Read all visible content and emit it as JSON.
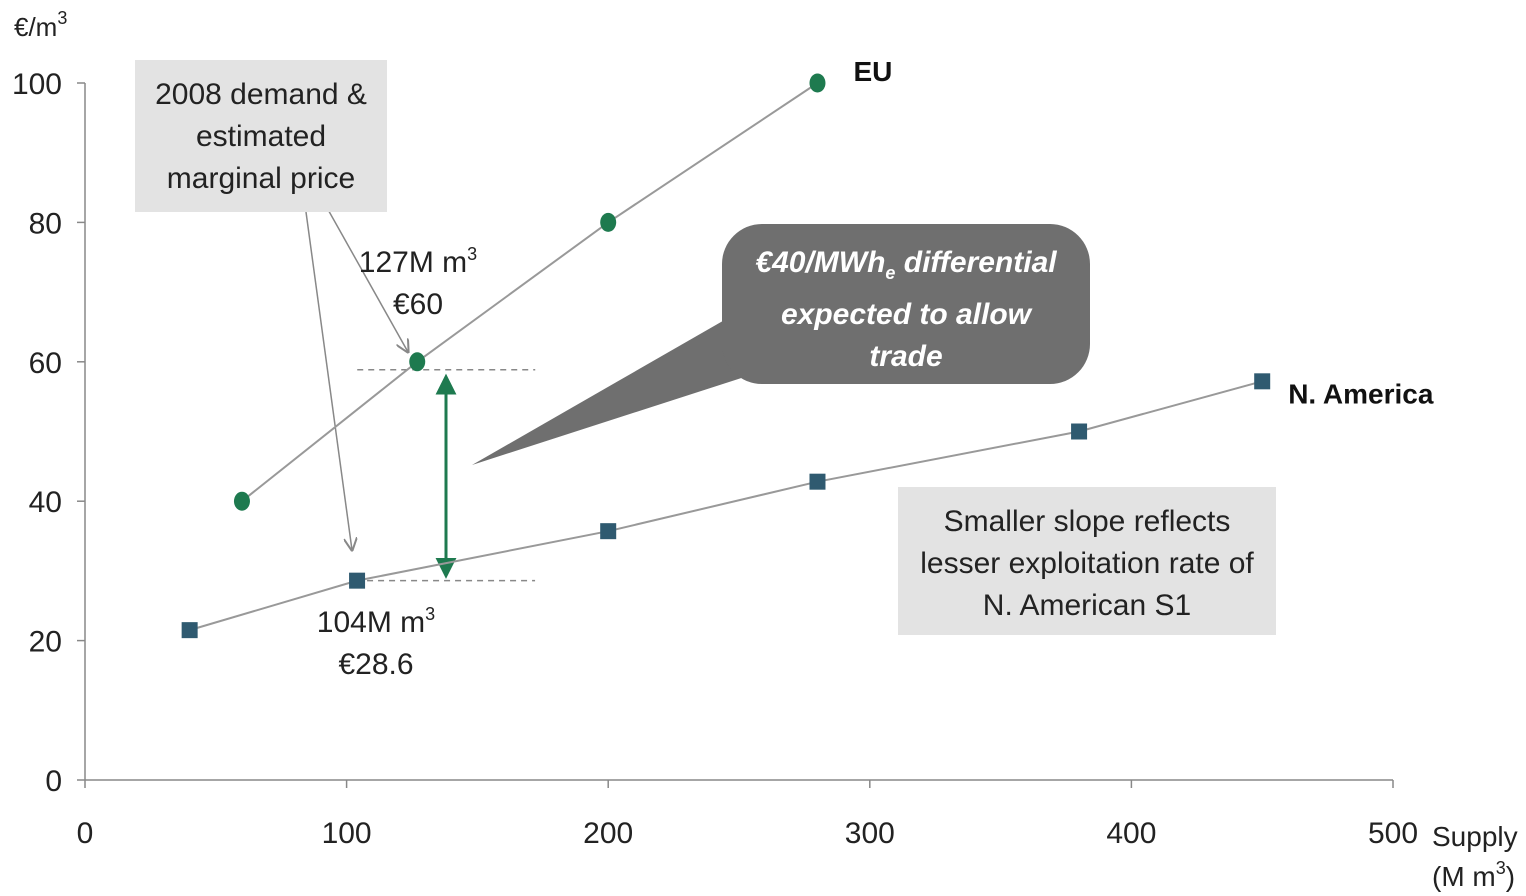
{
  "chart_data": {
    "type": "line",
    "ylabel": "€/m",
    "ylabel_sup": "3",
    "xlabel_line1": "Supply",
    "xlabel_line2": "(M m",
    "xlabel_line2_sup": "3",
    "xlabel_line2_end": ")",
    "xlim": [
      0,
      500
    ],
    "ylim": [
      0,
      100
    ],
    "x_ticks": [
      0,
      100,
      200,
      300,
      400,
      500
    ],
    "y_ticks": [
      0,
      20,
      40,
      60,
      80,
      100
    ],
    "grid": false,
    "series": [
      {
        "name": "EU",
        "marker": "circle",
        "color": "#1e7a4f",
        "points": [
          [
            60,
            40
          ],
          [
            127,
            60
          ],
          [
            200,
            80
          ],
          [
            280,
            100
          ]
        ]
      },
      {
        "name": "N. America",
        "marker": "square",
        "color": "#2f5a70",
        "points": [
          [
            40,
            21.5
          ],
          [
            104,
            28.6
          ],
          [
            200,
            35.7
          ],
          [
            280,
            42.8
          ],
          [
            380,
            50
          ],
          [
            450,
            57.2
          ]
        ]
      }
    ],
    "annotations": {
      "eu_point_label_line1": "127M m",
      "eu_point_label_line1_sup": "3",
      "eu_point_label_line2": "€60",
      "na_point_label_line1": "104M m",
      "na_point_label_line1_sup": "3",
      "na_point_label_line2": "€28.6",
      "demand_box": [
        "2008 demand &",
        "estimated",
        "marginal price"
      ],
      "callout_line1_a": "€40/MWh",
      "callout_line1_sub": "e",
      "callout_line1_b": " differential",
      "callout_line2": "expected to allow",
      "callout_line3": "trade",
      "slope_box": [
        "Smaller slope reflects",
        "lesser exploitation rate of",
        "N. American S1"
      ]
    },
    "colors": {
      "eu": "#1e7a4f",
      "na": "#2f5a70",
      "arrow": "#1e7a4f",
      "callout": "#6f6f6f",
      "box": "#e3e3e3"
    }
  }
}
